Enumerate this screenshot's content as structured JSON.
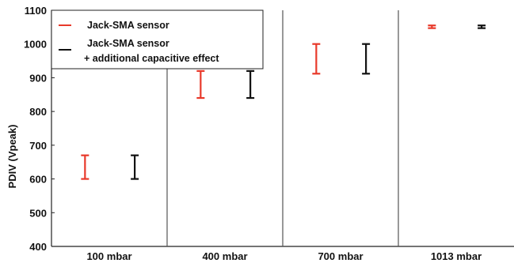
{
  "chart_data": {
    "type": "errorbar",
    "categories": [
      "100 mbar",
      "400 mbar",
      "700 mbar",
      "1013 mbar"
    ],
    "ylabel": "PDIV (Vpeak)",
    "ylim": [
      400,
      1100
    ],
    "yticks": [
      400,
      500,
      600,
      700,
      800,
      900,
      1000,
      1100
    ],
    "series": [
      {
        "name": "Jack-SMA sensor",
        "color": "#e8392a",
        "ranges": [
          [
            600,
            670
          ],
          [
            840,
            920
          ],
          [
            912,
            1000
          ],
          [
            1047,
            1055
          ]
        ]
      },
      {
        "name": "Jack-SMA sensor",
        "name_line2": "+ additional capacitive effect",
        "color": "#111111",
        "ranges": [
          [
            600,
            670
          ],
          [
            840,
            920
          ],
          [
            912,
            1000
          ],
          [
            1047,
            1055
          ]
        ]
      }
    ],
    "grid": false,
    "legend_position": "top-left"
  }
}
